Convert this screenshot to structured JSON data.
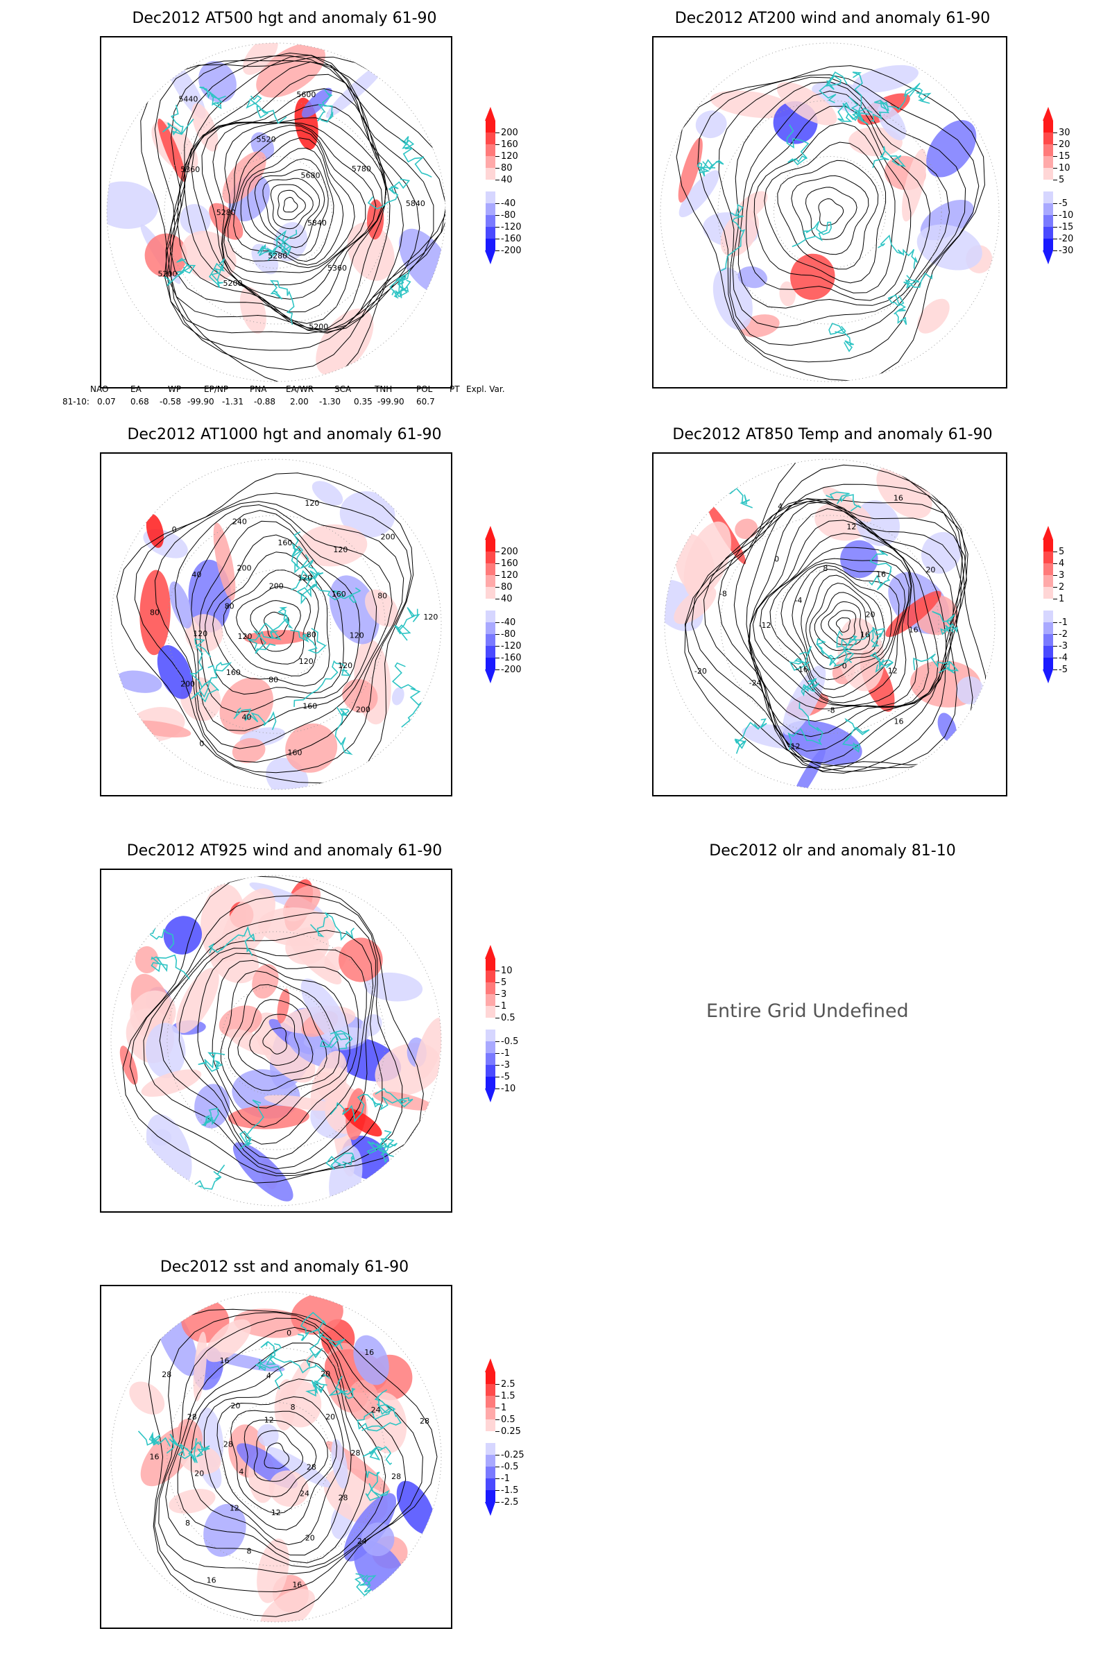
{
  "panels": [
    {
      "id": "p500",
      "title": "Dec2012 AT500 hgt and anomaly 61-90",
      "colorbar": [
        "200",
        "160",
        "120",
        "80",
        "40",
        "-40",
        "-80",
        "-120",
        "-160",
        "-200"
      ],
      "contour_labels": [
        "5840",
        "5360",
        "5200",
        "5280",
        "5200",
        "5200",
        "5280",
        "5360",
        "5440",
        "5520",
        "5600",
        "5680",
        "5780",
        "5840"
      ]
    },
    {
      "id": "p200",
      "title": "Dec2012 AT200 wind and anomaly 61-90",
      "colorbar": [
        "30",
        "20",
        "15",
        "10",
        "5",
        "-5",
        "-10",
        "-15",
        "-20",
        "-30"
      ],
      "contour_labels": []
    },
    {
      "id": "p1000",
      "title": "Dec2012 AT1000 hgt and anomaly 61-90",
      "colorbar": [
        "200",
        "160",
        "120",
        "80",
        "40",
        "-40",
        "-80",
        "-120",
        "-160",
        "-200"
      ],
      "contour_labels": [
        "80",
        "120",
        "200",
        "120",
        "160",
        "160",
        "80",
        "40",
        "0",
        "160",
        "200",
        "120",
        "120",
        "80",
        "80",
        "40",
        "0",
        "200",
        "240",
        "200",
        "160",
        "120",
        "120",
        "120",
        "200",
        "160",
        "80",
        "120",
        "120"
      ]
    },
    {
      "id": "p850",
      "title": "Dec2012 AT850 Temp and anomaly 61-90",
      "colorbar": [
        "5",
        "4",
        "3",
        "2",
        "1",
        "-1",
        "-2",
        "-3",
        "-4",
        "-5"
      ],
      "contour_labels": [
        "16",
        "12",
        "16",
        "0",
        "-8",
        "-12",
        "-16",
        "-24",
        "-20",
        "-12",
        "-8",
        "-4",
        "0",
        "4",
        "8",
        "12",
        "16",
        "16",
        "20",
        "20",
        "16"
      ]
    },
    {
      "id": "p925",
      "title": "Dec2012 AT925 wind and anomaly 61-90",
      "colorbar": [
        "10",
        "5",
        "3",
        "1",
        "0.5",
        "-0.5",
        "-1",
        "-3",
        "-5",
        "-10"
      ],
      "contour_labels": []
    },
    {
      "id": "polr",
      "title": "Dec2012 olr and anomaly 81-10",
      "message": "Entire Grid Undefined"
    },
    {
      "id": "psst",
      "title": "Dec2012 sst and anomaly 61-90",
      "colorbar": [
        "2.5",
        "1.5",
        "1",
        "0.5",
        "0.25",
        "-0.25",
        "-0.5",
        "-1",
        "-1.5",
        "-2.5"
      ],
      "contour_labels": [
        "28",
        "28",
        "24",
        "24",
        "20",
        "16",
        "12",
        "8",
        "16",
        "12",
        "8",
        "4",
        "20",
        "16",
        "28",
        "28",
        "28",
        "20",
        "16",
        "12",
        "4",
        "0",
        "8",
        "20",
        "16",
        "20",
        "24",
        "28",
        "28",
        "28"
      ]
    }
  ],
  "indices": {
    "headers": [
      "NAO",
      "EA",
      "WP",
      "EP/NP",
      "PNA",
      "EA/WR",
      "SCA",
      "TNH",
      "POL",
      "PT",
      "Expl. Var."
    ],
    "row_label": "81-10:",
    "values": [
      "0.07",
      "0.68",
      "-0.58",
      "-99.90",
      "-1.31",
      "-0.88",
      "2.00",
      "-1.30",
      "0.35",
      "-99.90",
      "60.7"
    ]
  },
  "colors": {
    "pos": [
      "#ff1a1a",
      "#ff4a4a",
      "#ff7a7a",
      "#ffa9a9",
      "#ffd6d6"
    ],
    "neg": [
      "#d6d6ff",
      "#a9a9ff",
      "#7a7aff",
      "#4a4aff",
      "#1a1aff"
    ],
    "coast": "#2ec4c4",
    "contour": "#000000"
  }
}
